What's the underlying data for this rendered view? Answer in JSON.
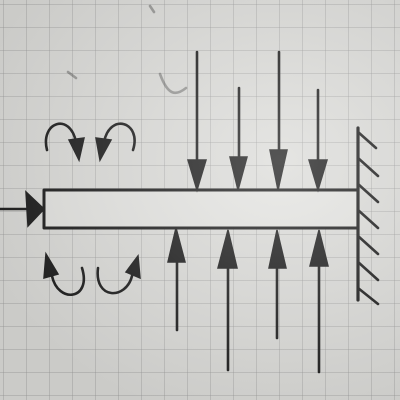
{
  "diagram": {
    "colors": {
      "ink": "#1d1d1d",
      "paper": "#dcdcd9"
    },
    "elements": {
      "beam": "beam",
      "fixed_support": "fixed-wall-support",
      "axial_force": "axial-force-arrow",
      "top_loads": 4,
      "bottom_loads": 4,
      "moment_symbols": 4
    }
  }
}
